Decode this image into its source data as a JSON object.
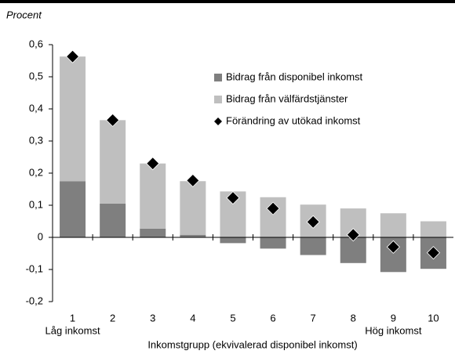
{
  "chart_data": {
    "type": "bar",
    "y_label": "Procent",
    "x_label": "Inkomstgrupp (ekvivalerad disponibel inkomst)",
    "annotations": [
      "Låg inkomst",
      "Hög inkomst"
    ],
    "categories": [
      "1",
      "2",
      "3",
      "4",
      "5",
      "6",
      "7",
      "8",
      "9",
      "10"
    ],
    "series": [
      {
        "name": "Bidrag från disponibel inkomst",
        "color": "#7f7f7f",
        "kind": "bar",
        "values": [
          0.175,
          0.105,
          0.027,
          0.008,
          -0.018,
          -0.035,
          -0.055,
          -0.08,
          -0.108,
          -0.098
        ]
      },
      {
        "name": "Bidrag från välfärdstjänster",
        "color": "#bfbfbf",
        "kind": "bar",
        "values": [
          0.388,
          0.26,
          0.203,
          0.167,
          0.143,
          0.125,
          0.102,
          0.09,
          0.075,
          0.05
        ]
      },
      {
        "name": "Förändring av utökad inkomst",
        "color": "#000000",
        "kind": "marker",
        "values": [
          0.563,
          0.365,
          0.23,
          0.177,
          0.123,
          0.09,
          0.048,
          0.008,
          -0.03,
          -0.048
        ]
      }
    ],
    "ylim": [
      -0.2,
      0.6
    ],
    "yticks": [
      {
        "value": -0.2,
        "label": "-0,2"
      },
      {
        "value": -0.1,
        "label": "-0,1"
      },
      0,
      {
        "value": 0.1,
        "label": "0,1"
      },
      {
        "value": 0.2,
        "label": "0,2"
      },
      {
        "value": 0.3,
        "label": "0,3"
      },
      {
        "value": 0.4,
        "label": "0,4"
      },
      {
        "value": 0.5,
        "label": "0,5"
      },
      {
        "value": 0.6,
        "label": "0,6"
      }
    ]
  }
}
